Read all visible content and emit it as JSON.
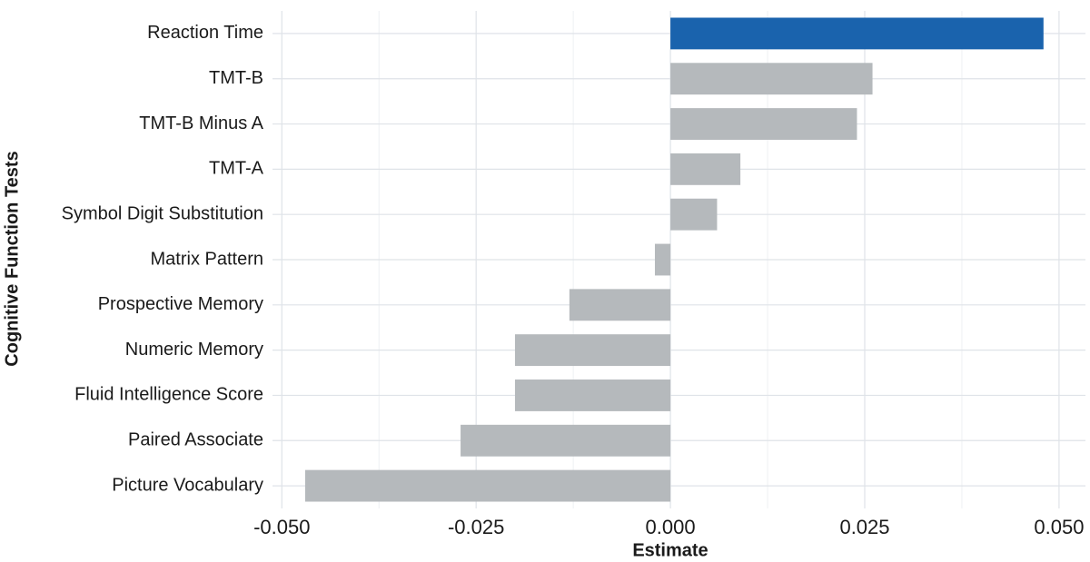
{
  "chart_data": {
    "type": "barh",
    "x_label": "Estimate",
    "y_label": "Cognitive Function Tests",
    "categories": [
      "Reaction Time",
      "TMT-B",
      "TMT-B Minus A",
      "TMT-A",
      "Symbol Digit Substitution",
      "Matrix Pattern",
      "Prospective Memory",
      "Numeric Memory",
      "Fluid Intelligence Score",
      "Paired Associate",
      "Picture Vocabulary"
    ],
    "values": [
      0.048,
      0.026,
      0.024,
      0.009,
      0.006,
      -0.002,
      -0.013,
      -0.02,
      -0.02,
      -0.027,
      -0.047
    ],
    "colors": [
      "#1a63ad",
      "#b5b9bc",
      "#b5b9bc",
      "#b5b9bc",
      "#b5b9bc",
      "#b5b9bc",
      "#b5b9bc",
      "#b5b9bc",
      "#b5b9bc",
      "#b5b9bc",
      "#b5b9bc"
    ],
    "xlim": [
      -0.0512,
      0.0534
    ],
    "xticks": [
      {
        "value": -0.05,
        "label": "-0.050"
      },
      {
        "value": -0.025,
        "label": "-0.025"
      },
      {
        "value": 0,
        "label": "0.000"
      },
      {
        "value": 0.025,
        "label": "0.025"
      },
      {
        "value": 0.05,
        "label": "0.050"
      }
    ],
    "grid": true
  }
}
